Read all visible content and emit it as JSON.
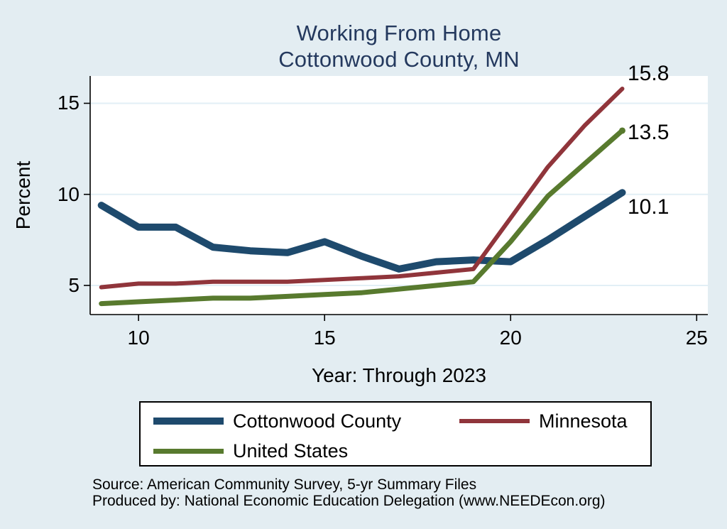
{
  "title": {
    "line1": "Working From Home",
    "line2": "Cottonwood County, MN"
  },
  "chart_data": {
    "type": "line",
    "title": "Working From Home — Cottonwood County, MN",
    "xlabel": "Year: Through 2023",
    "ylabel": "Percent",
    "x": [
      9,
      10,
      11,
      12,
      13,
      14,
      15,
      16,
      17,
      18,
      19,
      20,
      21,
      22,
      23
    ],
    "series": [
      {
        "name": "Cottonwood County",
        "color": "#1e4a6d",
        "line_width": 10,
        "values": [
          9.4,
          8.2,
          8.2,
          7.1,
          6.9,
          6.8,
          7.4,
          6.6,
          5.9,
          6.3,
          6.4,
          6.3,
          7.5,
          8.8,
          10.1
        ],
        "end_label": "10.1",
        "end_marker": false
      },
      {
        "name": "Minnesota",
        "color": "#90353b",
        "line_width": 6,
        "values": [
          4.9,
          5.1,
          5.1,
          5.2,
          5.2,
          5.2,
          5.3,
          5.4,
          5.5,
          5.7,
          5.9,
          8.7,
          11.5,
          13.8,
          15.8
        ],
        "end_label": "15.8",
        "end_marker": false
      },
      {
        "name": "United States",
        "color": "#587a2e",
        "line_width": 7,
        "values": [
          4.0,
          4.1,
          4.2,
          4.3,
          4.3,
          4.4,
          4.5,
          4.6,
          4.8,
          5.0,
          5.2,
          7.4,
          9.9,
          11.7,
          13.5
        ],
        "end_label": "13.5",
        "end_marker": true
      }
    ],
    "x_ticks": [
      "10",
      "15",
      "20",
      "25"
    ],
    "x_tick_values": [
      10,
      15,
      20,
      25
    ],
    "y_ticks": [
      "5",
      "10",
      "15"
    ],
    "y_tick_values": [
      5,
      10,
      15
    ],
    "xlim": [
      8.7,
      25.3
    ],
    "ylim": [
      3.4,
      16.5
    ],
    "grid": "horizontal gridlines at y ticks only",
    "legend_position": "bottom"
  },
  "colors": {
    "page_background": "#e3edf2",
    "plot_background": "#ffffff",
    "gridline": "#e2eff6",
    "axis": "#000000",
    "title_text": "#24395e",
    "cottonwood_county": "#1e4a6d",
    "minnesota": "#90353b",
    "united_states": "#587a2e"
  },
  "source": {
    "line1": "Source: American Community Survey, 5-yr Summary Files",
    "line2": "Produced by: National Economic Education Delegation (www.NEEDEcon.org)"
  }
}
